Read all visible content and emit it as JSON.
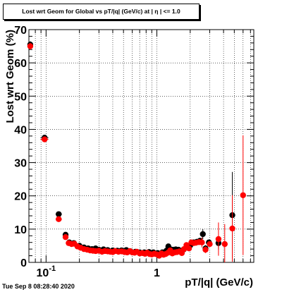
{
  "title": "Lost wrt Geom for Global vs pT/|q| (GeV/c) at |  η | <= 1.0",
  "timestamp": "Tue Sep  8 08:28:40 2020",
  "chart_data": {
    "type": "scatter",
    "title": "Lost wrt Geom for Global vs pT/|q| (GeV/c) at |  η | <= 1.0",
    "xlabel": "pT/|q| (GeV/c)",
    "ylabel": "Lost wrt Geom (%)",
    "xscale": "log",
    "xlim": [
      0.07,
      7.5
    ],
    "ylim": [
      0,
      70
    ],
    "x_tick_labels": [
      {
        "value": 0.1,
        "label": "10",
        "exp": "-1"
      },
      {
        "value": 1,
        "label": "1",
        "exp": ""
      }
    ],
    "y_ticks": [
      0,
      10,
      20,
      30,
      40,
      50,
      60,
      70
    ],
    "grid": true,
    "series": [
      {
        "color": "#000000",
        "points": [
          {
            "x": 0.072,
            "y": 65.5,
            "xerr": [
              0.07,
              0.075
            ],
            "yerr": 1.0
          },
          {
            "x": 0.097,
            "y": 37.5,
            "xerr": [
              0.089,
              0.105
            ],
            "yerr": 0.8
          },
          {
            "x": 0.13,
            "y": 14.5,
            "xerr": [
              0.122,
              0.139
            ],
            "yerr": 0.6
          },
          {
            "x": 0.15,
            "y": 8.3,
            "yerr": 0.5
          },
          {
            "x": 0.162,
            "y": 6.0,
            "yerr": 0.4
          },
          {
            "x": 0.178,
            "y": 5.8,
            "yerr": 0.4
          },
          {
            "x": 0.2,
            "y": 5.0
          },
          {
            "x": 0.22,
            "y": 4.5
          },
          {
            "x": 0.24,
            "y": 4.2
          },
          {
            "x": 0.26,
            "y": 4.0
          },
          {
            "x": 0.28,
            "y": 4.2
          },
          {
            "x": 0.3,
            "y": 3.8
          },
          {
            "x": 0.33,
            "y": 3.9
          },
          {
            "x": 0.36,
            "y": 3.7
          },
          {
            "x": 0.4,
            "y": 3.6
          },
          {
            "x": 0.44,
            "y": 3.5
          },
          {
            "x": 0.48,
            "y": 3.6
          },
          {
            "x": 0.53,
            "y": 3.7
          },
          {
            "x": 0.58,
            "y": 3.3
          },
          {
            "x": 0.64,
            "y": 3.2
          },
          {
            "x": 0.7,
            "y": 3.0
          },
          {
            "x": 0.77,
            "y": 3.0
          },
          {
            "x": 0.85,
            "y": 3.1
          },
          {
            "x": 0.93,
            "y": 3.0
          },
          {
            "x": 1.02,
            "y": 2.8
          },
          {
            "x": 1.12,
            "y": 3.0
          },
          {
            "x": 1.22,
            "y": 3.5
          },
          {
            "x": 1.27,
            "y": 4.8,
            "yerr": 0.6
          },
          {
            "x": 1.33,
            "y": 3.9
          },
          {
            "x": 1.4,
            "y": 3.8
          },
          {
            "x": 1.48,
            "y": 3.9
          },
          {
            "x": 1.57,
            "y": 3.8
          },
          {
            "x": 1.65,
            "y": 3.2
          },
          {
            "x": 1.75,
            "y": 3.9
          },
          {
            "x": 1.85,
            "y": 4.8
          },
          {
            "x": 2.0,
            "y": 5.1
          },
          {
            "x": 2.15,
            "y": 6.0
          },
          {
            "x": 2.3,
            "y": 6.2
          },
          {
            "x": 2.45,
            "y": 6.5
          },
          {
            "x": 2.6,
            "y": 8.5,
            "yerr": 1.5
          },
          {
            "x": 2.75,
            "y": 4.2,
            "yerr": 1.0
          },
          {
            "x": 2.95,
            "y": 6.0
          },
          {
            "x": 3.6,
            "y": 5.8,
            "yerr": 2.0
          },
          {
            "x": 4.8,
            "y": 14.2,
            "yerr": 13.0
          }
        ]
      },
      {
        "color": "#ff0000",
        "points": [
          {
            "x": 0.072,
            "y": 65.0,
            "xerr": [
              0.07,
              0.075
            ],
            "yerr": 1.0
          },
          {
            "x": 0.097,
            "y": 37.0,
            "xerr": [
              0.089,
              0.105
            ],
            "yerr": 0.8
          },
          {
            "x": 0.13,
            "y": 13.0,
            "xerr": [
              0.122,
              0.139
            ],
            "yerr": 0.6
          },
          {
            "x": 0.15,
            "y": 7.6,
            "yerr": 0.5
          },
          {
            "x": 0.16,
            "y": 5.8
          },
          {
            "x": 0.17,
            "y": 5.5
          },
          {
            "x": 0.18,
            "y": 5.6
          },
          {
            "x": 0.192,
            "y": 4.8
          },
          {
            "x": 0.205,
            "y": 4.4
          },
          {
            "x": 0.22,
            "y": 4.0
          },
          {
            "x": 0.235,
            "y": 3.8
          },
          {
            "x": 0.25,
            "y": 3.6
          },
          {
            "x": 0.265,
            "y": 3.5
          },
          {
            "x": 0.28,
            "y": 3.4
          },
          {
            "x": 0.3,
            "y": 3.5
          },
          {
            "x": 0.32,
            "y": 3.2
          },
          {
            "x": 0.34,
            "y": 3.4
          },
          {
            "x": 0.36,
            "y": 3.3
          },
          {
            "x": 0.38,
            "y": 3.2
          },
          {
            "x": 0.4,
            "y": 3.1
          },
          {
            "x": 0.42,
            "y": 3.4
          },
          {
            "x": 0.45,
            "y": 3.2
          },
          {
            "x": 0.48,
            "y": 3.3
          },
          {
            "x": 0.51,
            "y": 3.1
          },
          {
            "x": 0.54,
            "y": 3.0
          },
          {
            "x": 0.57,
            "y": 3.4
          },
          {
            "x": 0.6,
            "y": 3.0
          },
          {
            "x": 0.63,
            "y": 2.9
          },
          {
            "x": 0.66,
            "y": 3.2
          },
          {
            "x": 0.7,
            "y": 2.7
          },
          {
            "x": 0.74,
            "y": 2.8
          },
          {
            "x": 0.78,
            "y": 2.6
          },
          {
            "x": 0.82,
            "y": 2.9
          },
          {
            "x": 0.86,
            "y": 2.5
          },
          {
            "x": 0.9,
            "y": 2.4
          },
          {
            "x": 0.95,
            "y": 2.6
          },
          {
            "x": 1.0,
            "y": 2.4
          },
          {
            "x": 1.05,
            "y": 2.0
          },
          {
            "x": 1.1,
            "y": 2.7
          },
          {
            "x": 1.15,
            "y": 2.3
          },
          {
            "x": 1.2,
            "y": 2.5
          },
          {
            "x": 1.26,
            "y": 2.9
          },
          {
            "x": 1.32,
            "y": 3.6
          },
          {
            "x": 1.38,
            "y": 2.7
          },
          {
            "x": 1.45,
            "y": 3.0
          },
          {
            "x": 1.52,
            "y": 3.1
          },
          {
            "x": 1.6,
            "y": 3.3
          },
          {
            "x": 1.68,
            "y": 2.8
          },
          {
            "x": 1.76,
            "y": 4.0
          },
          {
            "x": 1.85,
            "y": 5.2
          },
          {
            "x": 1.95,
            "y": 4.2
          },
          {
            "x": 2.05,
            "y": 6.0
          },
          {
            "x": 2.15,
            "y": 5.8
          },
          {
            "x": 2.25,
            "y": 5.9
          },
          {
            "x": 2.4,
            "y": 6.1
          },
          {
            "x": 2.55,
            "y": 6.0,
            "yerr": 1.5
          },
          {
            "x": 2.75,
            "y": 3.8,
            "yerr": 1.0
          },
          {
            "x": 3.0,
            "y": 5.5
          },
          {
            "x": 3.6,
            "y": 7.0,
            "yerr": 5.0
          },
          {
            "x": 4.1,
            "y": 5.5,
            "yerr": 6.0
          },
          {
            "x": 4.8,
            "y": 10.2,
            "yerr": 10.0
          },
          {
            "x": 6.0,
            "y": 20.2,
            "yerr": 18.0
          }
        ]
      }
    ]
  }
}
